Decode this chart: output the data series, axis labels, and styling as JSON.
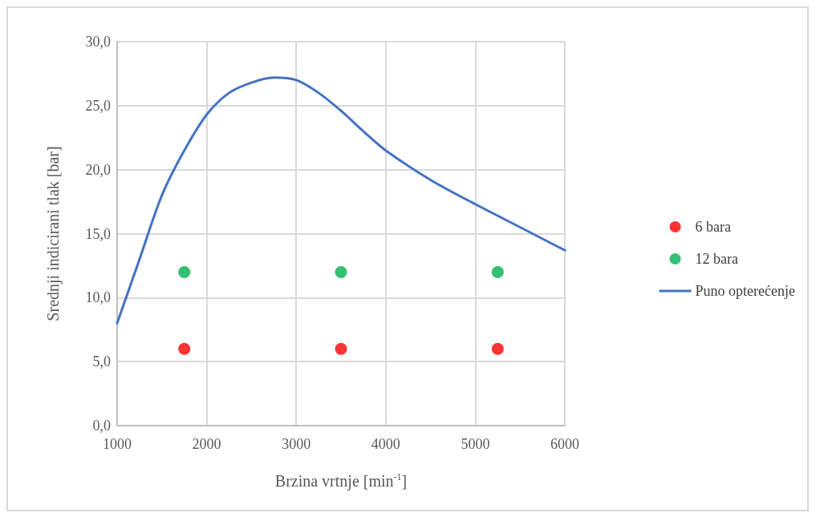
{
  "chart_data": {
    "type": "scatter",
    "xlabel": "Brzina vrtnje [min$^{-1}$]",
    "ylabel": "Srednji indicirani tlak [bar]",
    "xlim": [
      1000,
      6000
    ],
    "xticks": [
      1000,
      2000,
      3000,
      4000,
      5000,
      6000
    ],
    "ylim": [
      0,
      30
    ],
    "yticks": [
      {
        "value": 0,
        "label": "0,0"
      },
      {
        "value": 5,
        "label": "5,0"
      },
      {
        "value": 10,
        "label": "10,0"
      },
      {
        "value": 15,
        "label": "15,0"
      },
      {
        "value": 20,
        "label": "20,0"
      },
      {
        "value": 25,
        "label": "25,0"
      },
      {
        "value": 30,
        "label": "30,0"
      }
    ],
    "grid": true,
    "legend": "right",
    "marker": "circle",
    "series": [
      {
        "name": "6 bara",
        "color": "#ff0000",
        "x": [
          1750,
          3500,
          5250
        ],
        "values": [
          6,
          6,
          6
        ]
      },
      {
        "name": "12 bara",
        "color": "#00b050",
        "x": [
          1750,
          3500,
          5250
        ],
        "values": [
          12,
          12,
          12
        ]
      },
      {
        "name": "Puno opterećenje",
        "type": "line",
        "color": "#4472c4",
        "marker": "none",
        "line_style": "solid",
        "x": [
          1000,
          1250,
          1500,
          1750,
          2000,
          2250,
          2500,
          2750,
          3000,
          3250,
          3500,
          3750,
          4000,
          4500,
          5000,
          5500,
          6000
        ],
        "values": [
          8,
          13,
          18,
          21.5,
          24.3,
          26,
          26.8,
          27.2,
          27,
          26,
          24.6,
          23,
          21.5,
          19.2,
          17.3,
          15.5,
          13.7
        ]
      }
    ]
  }
}
